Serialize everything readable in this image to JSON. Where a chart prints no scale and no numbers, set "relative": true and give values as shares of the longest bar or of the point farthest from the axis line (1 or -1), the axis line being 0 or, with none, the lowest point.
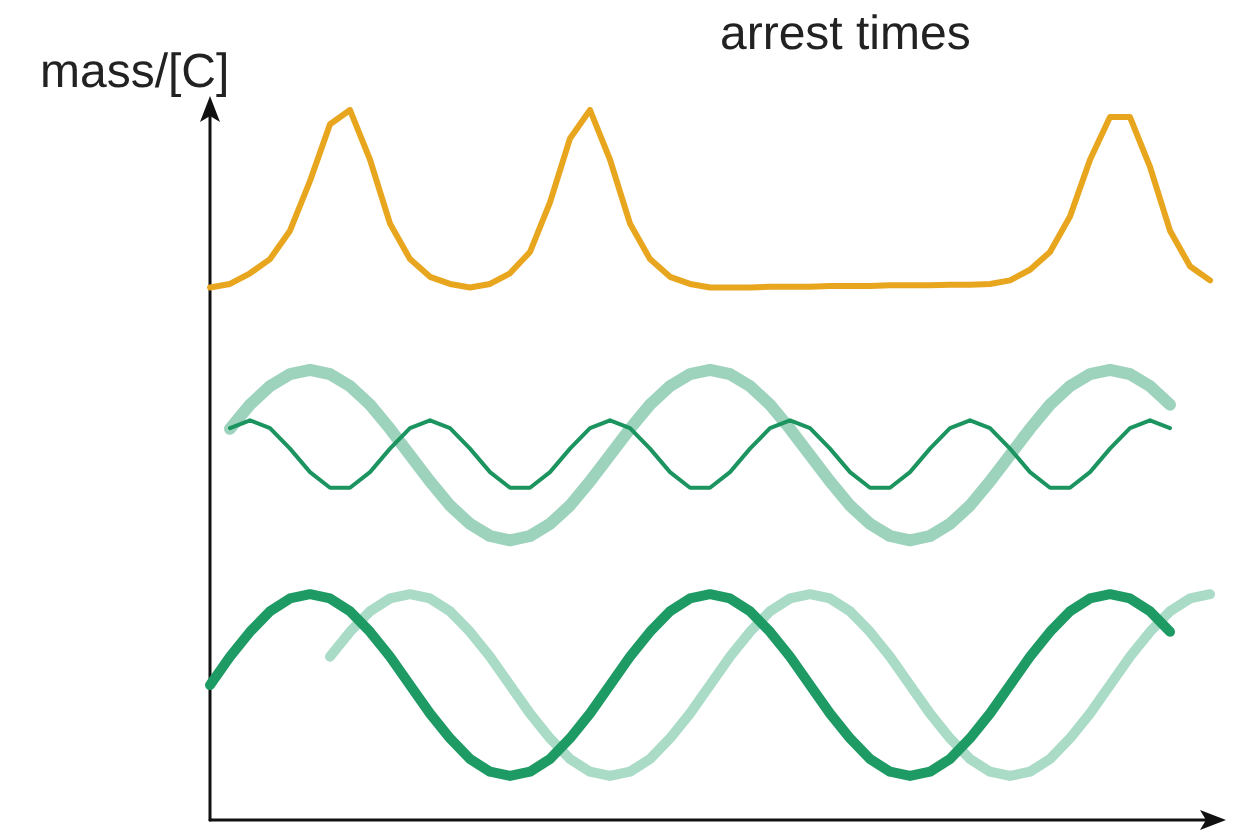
{
  "chart_data": {
    "type": "line",
    "relative": true,
    "title": "arrest times",
    "ylabel": "mass/[C]",
    "marker": "none",
    "categories": [
      null,
      null,
      null,
      null,
      null,
      null,
      null,
      null,
      null,
      null,
      null,
      null,
      null,
      null,
      null,
      null,
      null,
      null,
      null,
      null,
      null,
      null,
      null,
      null,
      null,
      null,
      null,
      null,
      null,
      null,
      null,
      null,
      null,
      null,
      null,
      null,
      null,
      null,
      null,
      null,
      null,
      null,
      null,
      null,
      null,
      null,
      null,
      null,
      null,
      null,
      null
    ],
    "series": [
      {
        "color": "#e8a51e",
        "values": [
          0.75,
          0.755,
          0.77,
          0.79,
          0.83,
          0.9,
          0.98,
          1.0,
          0.93,
          0.84,
          0.79,
          0.765,
          0.755,
          0.75,
          0.755,
          0.77,
          0.8,
          0.87,
          0.96,
          1.0,
          0.93,
          0.84,
          0.79,
          0.765,
          0.755,
          0.75,
          0.75,
          0.75,
          0.751,
          0.751,
          0.751,
          0.752,
          0.752,
          0.752,
          0.753,
          0.753,
          0.753,
          0.754,
          0.754,
          0.755,
          0.76,
          0.775,
          0.8,
          0.85,
          0.93,
          0.99,
          0.99,
          0.92,
          0.83,
          0.78,
          0.76
        ]
      },
      {
        "color": "#9dd3bd",
        "values": [
          null,
          0.551,
          0.585,
          0.611,
          0.628,
          0.634,
          0.628,
          0.611,
          0.585,
          0.551,
          0.514,
          0.477,
          0.443,
          0.417,
          0.4,
          0.394,
          0.4,
          0.417,
          0.443,
          0.477,
          0.514,
          0.551,
          0.585,
          0.611,
          0.628,
          0.634,
          0.628,
          0.611,
          0.585,
          0.551,
          0.514,
          0.477,
          0.443,
          0.417,
          0.4,
          0.394,
          0.4,
          0.417,
          0.443,
          0.477,
          0.514,
          0.551,
          0.585,
          0.611,
          0.628,
          0.634,
          0.628,
          0.611,
          0.585,
          null,
          null
        ]
      },
      {
        "color": "#1b9460",
        "values": [
          null,
          0.552,
          0.563,
          0.552,
          0.523,
          0.49,
          0.468,
          0.468,
          0.49,
          0.523,
          0.552,
          0.563,
          0.552,
          0.523,
          0.49,
          0.468,
          0.468,
          0.49,
          0.523,
          0.552,
          0.563,
          0.552,
          0.523,
          0.49,
          0.468,
          0.468,
          0.49,
          0.523,
          0.552,
          0.563,
          0.552,
          0.523,
          0.49,
          0.468,
          0.468,
          0.49,
          0.523,
          0.552,
          0.563,
          0.552,
          0.523,
          0.49,
          0.468,
          0.468,
          0.49,
          0.523,
          0.552,
          0.563,
          0.552,
          null,
          null
        ]
      },
      {
        "color": "#a9dbc6",
        "values": [
          null,
          null,
          null,
          null,
          null,
          null,
          0.23,
          0.265,
          0.294,
          0.312,
          0.318,
          0.312,
          0.294,
          0.265,
          0.23,
          0.19,
          0.15,
          0.115,
          0.086,
          0.068,
          0.062,
          0.068,
          0.086,
          0.115,
          0.15,
          0.19,
          0.23,
          0.265,
          0.294,
          0.312,
          0.318,
          0.312,
          0.294,
          0.265,
          0.23,
          0.19,
          0.15,
          0.115,
          0.086,
          0.068,
          0.062,
          0.068,
          0.086,
          0.115,
          0.15,
          0.19,
          0.23,
          0.265,
          0.294,
          0.312,
          0.318
        ]
      },
      {
        "color": "#1e9a64",
        "values": [
          0.19,
          0.23,
          0.265,
          0.294,
          0.312,
          0.318,
          0.312,
          0.294,
          0.265,
          0.23,
          0.19,
          0.15,
          0.115,
          0.086,
          0.068,
          0.062,
          0.068,
          0.086,
          0.115,
          0.15,
          0.19,
          0.23,
          0.265,
          0.294,
          0.312,
          0.318,
          0.312,
          0.294,
          0.265,
          0.23,
          0.19,
          0.15,
          0.115,
          0.086,
          0.068,
          0.062,
          0.068,
          0.086,
          0.115,
          0.15,
          0.19,
          0.23,
          0.265,
          0.294,
          0.312,
          0.318,
          0.312,
          0.294,
          0.265,
          null,
          null
        ]
      }
    ]
  }
}
